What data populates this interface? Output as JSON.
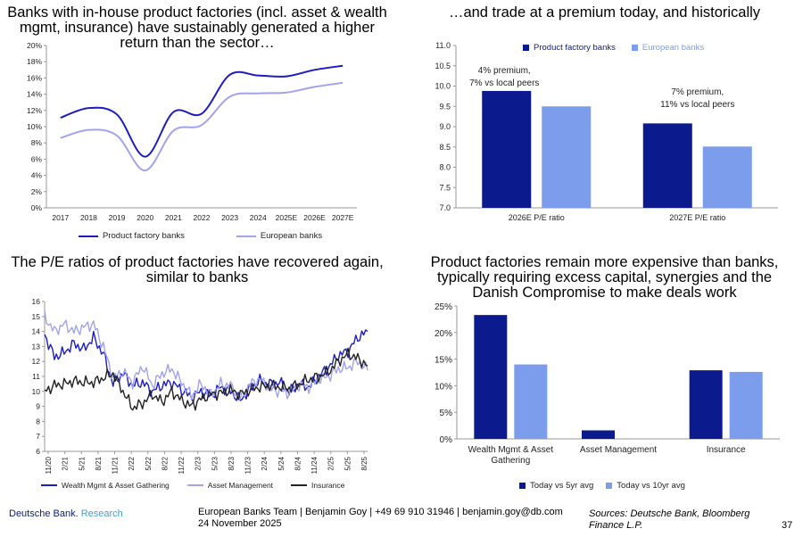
{
  "titles": {
    "tl": "Banks with in-house product factories (incl. asset & wealth mgmt, insurance) have sustainably generated a higher return than the sector…",
    "tr": "…and trade at a premium today, and historically",
    "bl": "The P/E ratios of product factories have recovered again, similar to banks",
    "br": "Product factories remain more expensive than banks, typically requiring excess capital, synergies and the Danish Compromise to make deals work"
  },
  "footer": {
    "brand": "Deutsche Bank.",
    "brand_research": "Research",
    "team_line1": "European Banks Team | Benjamin Goy | +49 69 910 31946 | benjamin.goy@db.com",
    "team_line2": "24 November 2025",
    "sources": "Sources: Deutsche Bank, Bloomberg Finance L.P.",
    "page_number": "37"
  },
  "colors": {
    "dark_blue": "#1d1dbf",
    "light_blue": "#a1a3ec",
    "navy": "#0b1a8c",
    "sky": "#7b9deb",
    "black": "#222222"
  },
  "chart_data": [
    {
      "type": "line",
      "categories": [
        "2017",
        "2018",
        "2019",
        "2020",
        "2021",
        "2022",
        "2023",
        "2024",
        "2025E",
        "2026E",
        "2027E"
      ],
      "yticks": [
        "0%",
        "2%",
        "4%",
        "6%",
        "8%",
        "10%",
        "12%",
        "14%",
        "16%",
        "18%",
        "20%"
      ],
      "ylim": [
        0,
        20
      ],
      "grid": false,
      "legend_position": "bottom",
      "series": [
        {
          "name": "Product factory banks",
          "color": "#1d1dbf",
          "values": [
            11.1,
            12.3,
            11.5,
            6.3,
            11.8,
            11.6,
            16.4,
            16.3,
            16.2,
            17.0,
            17.5
          ]
        },
        {
          "name": "European banks",
          "color": "#a1a3ec",
          "values": [
            8.6,
            9.6,
            8.9,
            4.6,
            9.5,
            10.2,
            13.7,
            14.1,
            14.2,
            14.9,
            15.4
          ]
        }
      ]
    },
    {
      "type": "bar",
      "categories": [
        "2026E P/E ratio",
        "2027E P/E ratio"
      ],
      "yticks": [
        "7.0",
        "7.5",
        "8.0",
        "8.5",
        "9.0",
        "9.5",
        "10.0",
        "10.5",
        "11.0"
      ],
      "ylim": [
        7.0,
        11.0
      ],
      "grid": false,
      "legend_position": "top",
      "series": [
        {
          "name": "Product factory banks",
          "color": "#0b1a8c",
          "values": [
            9.88,
            9.08
          ]
        },
        {
          "name": "European banks",
          "color": "#7b9deb",
          "values": [
            9.5,
            8.51
          ]
        }
      ],
      "annotations": [
        {
          "line1": "4% premium,",
          "line2": "7% vs local peers"
        },
        {
          "line1": "7% premium,",
          "line2": "11% vs local peers"
        }
      ]
    },
    {
      "type": "line",
      "x_ticks": [
        "11/20",
        "2/21",
        "5/21",
        "8/21",
        "11/21",
        "2/22",
        "5/22",
        "8/22",
        "11/22",
        "2/23",
        "5/23",
        "8/23",
        "11/23",
        "2/24",
        "5/24",
        "8/24",
        "11/24",
        "2/25",
        "5/25",
        "8/25"
      ],
      "yticks": [
        "6",
        "7",
        "8",
        "9",
        "10",
        "11",
        "12",
        "13",
        "14",
        "15",
        "16"
      ],
      "ylim": [
        6,
        16
      ],
      "grid": false,
      "legend_position": "bottom",
      "series": [
        {
          "name": "Wealth Mgmt & Asset Gathering",
          "color": "#1d1dbf",
          "values": [
            13.8,
            12.3,
            12.6,
            13.2,
            12.8,
            13.6,
            12.5,
            10.5,
            11.2,
            10.4,
            10.6,
            10.0,
            10.4,
            10.6,
            10.1,
            9.6,
            10.0,
            9.7,
            10.3,
            10.0,
            9.4,
            10.2,
            10.7,
            10.5,
            10.6,
            10.0,
            10.5,
            10.3,
            11.0,
            11.6,
            12.4,
            12.7,
            13.6,
            14.0
          ]
        },
        {
          "name": "Asset Management",
          "color": "#a1a3ec",
          "values": [
            15.0,
            14.0,
            14.5,
            14.0,
            14.3,
            14.5,
            13.0,
            10.9,
            11.3,
            10.6,
            11.7,
            10.4,
            11.2,
            11.5,
            10.6,
            9.7,
            10.5,
            9.8,
            10.5,
            10.4,
            9.5,
            10.5,
            10.8,
            10.2,
            10.0,
            9.9,
            10.4,
            10.3,
            10.8,
            11.0,
            11.5,
            11.6,
            12.0,
            11.4
          ]
        },
        {
          "name": "Insurance",
          "color": "#222222",
          "values": [
            10.0,
            10.4,
            10.5,
            10.7,
            10.6,
            10.6,
            10.9,
            11.2,
            10.0,
            8.9,
            9.2,
            9.8,
            9.3,
            10.0,
            9.4,
            9.0,
            9.5,
            9.8,
            9.9,
            10.1,
            9.8,
            10.1,
            10.3,
            10.4,
            10.3,
            10.2,
            10.5,
            10.8,
            11.0,
            11.3,
            12.0,
            12.5,
            12.2,
            11.7
          ]
        }
      ]
    },
    {
      "type": "bar",
      "categories": [
        "Wealth Mgmt & Asset Gathering",
        "Asset Management",
        "Insurance"
      ],
      "yticks": [
        "0%",
        "5%",
        "10%",
        "15%",
        "20%",
        "25%"
      ],
      "ylim": [
        0,
        25
      ],
      "grid": false,
      "legend_position": "bottom",
      "series": [
        {
          "name": "Today vs 5yr avg",
          "color": "#0b1a8c",
          "values": [
            23.3,
            1.6,
            12.9
          ]
        },
        {
          "name": "Today vs 10yr avg",
          "color": "#7b9deb",
          "values": [
            14.0,
            0.0,
            12.6
          ]
        }
      ]
    }
  ]
}
